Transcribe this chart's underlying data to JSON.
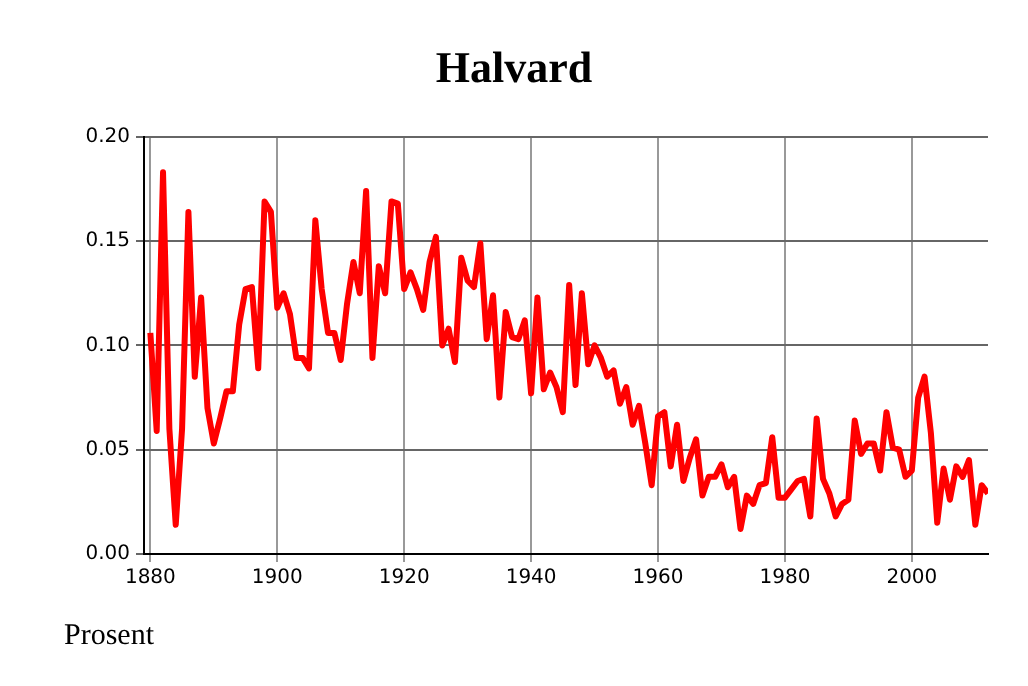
{
  "chart_data": {
    "type": "line",
    "title": "Halvard",
    "ylabel": "Prosent",
    "x": [
      1880,
      1881,
      1882,
      1883,
      1884,
      1885,
      1886,
      1887,
      1888,
      1889,
      1890,
      1891,
      1892,
      1893,
      1894,
      1895,
      1896,
      1897,
      1898,
      1899,
      1900,
      1901,
      1902,
      1903,
      1904,
      1905,
      1906,
      1907,
      1908,
      1909,
      1910,
      1911,
      1912,
      1913,
      1914,
      1915,
      1916,
      1917,
      1918,
      1919,
      1920,
      1921,
      1922,
      1923,
      1924,
      1925,
      1926,
      1927,
      1928,
      1929,
      1930,
      1931,
      1932,
      1933,
      1934,
      1935,
      1936,
      1937,
      1938,
      1939,
      1940,
      1941,
      1942,
      1943,
      1944,
      1945,
      1946,
      1947,
      1948,
      1949,
      1950,
      1951,
      1952,
      1953,
      1954,
      1955,
      1956,
      1957,
      1958,
      1959,
      1960,
      1961,
      1962,
      1963,
      1964,
      1965,
      1966,
      1967,
      1968,
      1969,
      1970,
      1971,
      1972,
      1973,
      1974,
      1975,
      1976,
      1977,
      1978,
      1979,
      1980,
      1981,
      1982,
      1983,
      1984,
      1985,
      1986,
      1987,
      1988,
      1989,
      1990,
      1991,
      1992,
      1993,
      1994,
      1995,
      1996,
      1997,
      1998,
      1999,
      2000,
      2001,
      2002,
      2003,
      2004,
      2005,
      2006,
      2007,
      2008,
      2009,
      2010,
      2011,
      2012
    ],
    "series": [
      {
        "color": "#ff0000",
        "values": [
          0.106,
          0.059,
          0.183,
          0.06,
          0.014,
          0.06,
          0.164,
          0.085,
          0.123,
          0.07,
          0.053,
          0.065,
          0.078,
          0.078,
          0.11,
          0.127,
          0.128,
          0.089,
          0.169,
          0.164,
          0.118,
          0.125,
          0.115,
          0.094,
          0.094,
          0.089,
          0.16,
          0.127,
          0.106,
          0.106,
          0.093,
          0.12,
          0.14,
          0.125,
          0.174,
          0.094,
          0.138,
          0.125,
          0.169,
          0.168,
          0.127,
          0.135,
          0.127,
          0.117,
          0.14,
          0.152,
          0.1,
          0.108,
          0.092,
          0.142,
          0.131,
          0.128,
          0.149,
          0.103,
          0.124,
          0.075,
          0.116,
          0.104,
          0.103,
          0.112,
          0.077,
          0.123,
          0.079,
          0.087,
          0.08,
          0.068,
          0.129,
          0.081,
          0.125,
          0.091,
          0.1,
          0.094,
          0.085,
          0.088,
          0.072,
          0.08,
          0.062,
          0.071,
          0.053,
          0.033,
          0.066,
          0.068,
          0.042,
          0.062,
          0.035,
          0.046,
          0.055,
          0.028,
          0.037,
          0.037,
          0.043,
          0.032,
          0.037,
          0.012,
          0.028,
          0.024,
          0.033,
          0.034,
          0.056,
          0.027,
          0.027,
          0.031,
          0.035,
          0.036,
          0.018,
          0.065,
          0.036,
          0.029,
          0.018,
          0.024,
          0.026,
          0.064,
          0.048,
          0.053,
          0.053,
          0.04,
          0.068,
          0.051,
          0.05,
          0.037,
          0.04,
          0.075,
          0.085,
          0.058,
          0.015,
          0.041,
          0.026,
          0.042,
          0.037,
          0.045,
          0.014,
          0.033,
          0.029
        ]
      }
    ],
    "xlim": [
      1879,
      2012
    ],
    "xticks": [
      1880,
      1900,
      1920,
      1940,
      1960,
      1980,
      2000
    ],
    "ylim": [
      0,
      0.2
    ],
    "yticks": [
      {
        "value": 0,
        "label": "0.00"
      },
      {
        "value": 0.05,
        "label": "0.05"
      },
      {
        "value": 0.1,
        "label": "0.10"
      },
      {
        "value": 0.15,
        "label": "0.15"
      },
      {
        "value": 0.2,
        "label": "0.20"
      }
    ],
    "grid": true,
    "legend": false,
    "marker": "none",
    "line_style": "solid"
  }
}
